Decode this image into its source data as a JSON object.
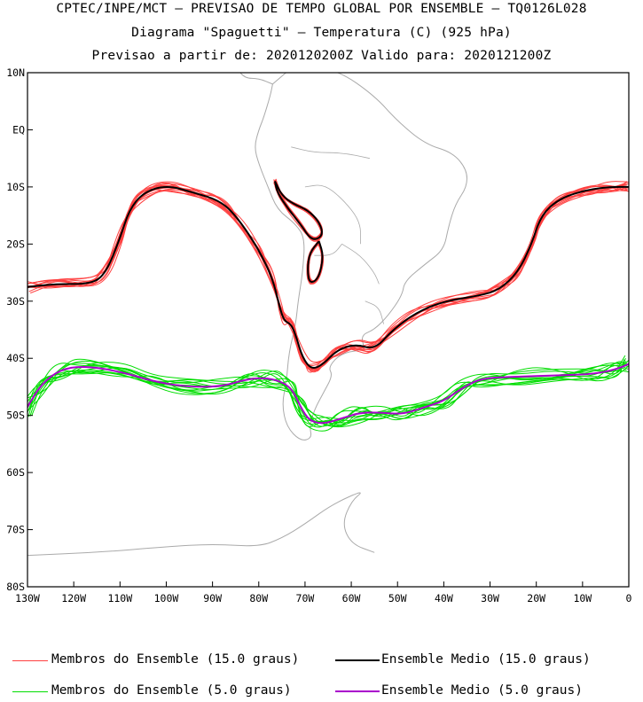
{
  "header": {
    "title": "CPTEC/INPE/MCT – PREVISAO DE TEMPO GLOBAL POR ENSEMBLE – TQ0126L028",
    "subtitle": "Diagrama \"Spaguetti\" – Temperatura (C) (925 hPa)",
    "forecast_line": "Previsao a partir de: 2020120200Z  Valido para: 2020121200Z"
  },
  "colors": {
    "member_15": "#ff4040",
    "mean_15": "#000000",
    "member_5": "#00dd00",
    "mean_5": "#aa00cc",
    "coast": "#aaaaaa"
  },
  "legend": [
    {
      "label": "Membros do Ensemble (15.0 graus)",
      "color": "#ff4040",
      "width": 1
    },
    {
      "label": "Ensemble Medio (15.0 graus)",
      "color": "#000000",
      "width": 2
    },
    {
      "label": "Membros do Ensemble (5.0 graus)",
      "color": "#00dd00",
      "width": 1
    },
    {
      "label": "Ensemble Medio (5.0 graus)",
      "color": "#aa00cc",
      "width": 2
    }
  ],
  "chart_data": {
    "type": "line",
    "map": "South America spaghetti contour map",
    "xlim": [
      -130,
      0
    ],
    "ylim": [
      -80,
      10
    ],
    "x_ticks": [
      {
        "value": -130,
        "label": "130W"
      },
      {
        "value": -120,
        "label": "120W"
      },
      {
        "value": -110,
        "label": "110W"
      },
      {
        "value": -100,
        "label": "100W"
      },
      {
        "value": -90,
        "label": "90W"
      },
      {
        "value": -80,
        "label": "80W"
      },
      {
        "value": -70,
        "label": "70W"
      },
      {
        "value": -60,
        "label": "60W"
      },
      {
        "value": -50,
        "label": "50W"
      },
      {
        "value": -40,
        "label": "40W"
      },
      {
        "value": -30,
        "label": "30W"
      },
      {
        "value": -20,
        "label": "20W"
      },
      {
        "value": -10,
        "label": "10W"
      },
      {
        "value": 0,
        "label": "0"
      }
    ],
    "y_ticks": [
      {
        "value": 10,
        "label": "10N"
      },
      {
        "value": 0,
        "label": "EQ"
      },
      {
        "value": -10,
        "label": "10S"
      },
      {
        "value": -20,
        "label": "20S"
      },
      {
        "value": -30,
        "label": "30S"
      },
      {
        "value": -40,
        "label": "40S"
      },
      {
        "value": -50,
        "label": "50S"
      },
      {
        "value": -60,
        "label": "60S"
      },
      {
        "value": -70,
        "label": "70S"
      },
      {
        "value": -80,
        "label": "80S"
      }
    ],
    "series": [
      {
        "name": "Ensemble Medio (15.0 graus)",
        "color": "#000000",
        "points": [
          [
            -130,
            -27.5
          ],
          [
            -124,
            -27
          ],
          [
            -116,
            -27
          ],
          [
            -113,
            -25
          ],
          [
            -110,
            -19
          ],
          [
            -108,
            -14
          ],
          [
            -105,
            -11
          ],
          [
            -100,
            -9.7
          ],
          [
            -94,
            -11
          ],
          [
            -88,
            -12.5
          ],
          [
            -84,
            -16
          ],
          [
            -80,
            -21
          ],
          [
            -77,
            -26
          ],
          [
            -75.5,
            -31
          ],
          [
            -74.5,
            -33.5
          ],
          [
            -73,
            -34
          ],
          [
            -72,
            -36
          ],
          [
            -70.5,
            -40
          ],
          [
            -68.5,
            -42
          ],
          [
            -66,
            -41
          ],
          [
            -63,
            -38.5
          ],
          [
            -59,
            -37.5
          ],
          [
            -55,
            -38.5
          ],
          [
            -51,
            -35
          ],
          [
            -46,
            -32
          ],
          [
            -40,
            -30
          ],
          [
            -32,
            -29
          ],
          [
            -28,
            -28
          ],
          [
            -24,
            -25
          ],
          [
            -21,
            -20
          ],
          [
            -19,
            -15
          ],
          [
            -15,
            -12
          ],
          [
            -9,
            -10.5
          ],
          [
            -4,
            -10
          ],
          [
            0,
            -10
          ]
        ]
      },
      {
        "name": "Ensemble Medio (15.0 graus)",
        "color": "#000000",
        "points": [
          [
            -76.5,
            -9
          ],
          [
            -75,
            -11.5
          ],
          [
            -72.5,
            -13
          ],
          [
            -69.5,
            -14
          ],
          [
            -67,
            -16
          ],
          [
            -66,
            -18.5
          ],
          [
            -68.5,
            -19.5
          ],
          [
            -71,
            -16.5
          ],
          [
            -73.5,
            -14
          ],
          [
            -76,
            -11
          ],
          [
            -76.5,
            -9
          ]
        ]
      },
      {
        "name": "Ensemble Medio (15.0 graus)",
        "color": "#000000",
        "points": [
          [
            -67,
            -19.5
          ],
          [
            -66,
            -22
          ],
          [
            -67,
            -26
          ],
          [
            -69,
            -27
          ],
          [
            -69.5,
            -24.5
          ],
          [
            -69,
            -21.5
          ],
          [
            -67,
            -19.5
          ]
        ]
      },
      {
        "name": "Ensemble Medio (5.0 graus)",
        "color": "#aa00cc",
        "points": [
          [
            -130,
            -48.5
          ],
          [
            -127,
            -44.5
          ],
          [
            -123,
            -42
          ],
          [
            -118,
            -41.3
          ],
          [
            -110,
            -42.3
          ],
          [
            -103,
            -44
          ],
          [
            -96,
            -45
          ],
          [
            -88,
            -45
          ],
          [
            -82,
            -43.5
          ],
          [
            -77,
            -43.5
          ],
          [
            -73,
            -45
          ],
          [
            -71,
            -48.5
          ],
          [
            -69,
            -51
          ],
          [
            -66,
            -51.5
          ],
          [
            -62,
            -50.5
          ],
          [
            -58,
            -49.5
          ],
          [
            -54,
            -49.5
          ],
          [
            -49,
            -49.8
          ],
          [
            -45,
            -48.8
          ],
          [
            -40,
            -47.5
          ],
          [
            -36,
            -45.2
          ],
          [
            -32,
            -43.5
          ],
          [
            -24,
            -43.2
          ],
          [
            -16,
            -43
          ],
          [
            -8,
            -42.8
          ],
          [
            -3,
            -42
          ],
          [
            0,
            -41
          ]
        ]
      }
    ],
    "member_count_shown": "multiple members per threshold"
  }
}
